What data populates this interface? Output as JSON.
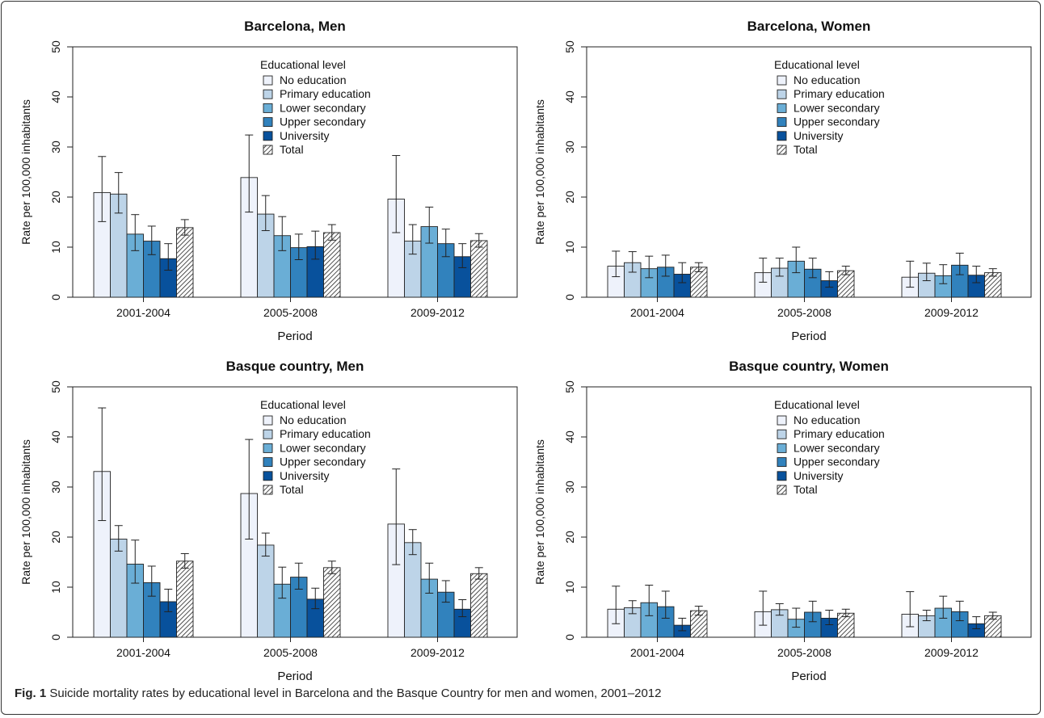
{
  "figure": {
    "caption_label": "Fig. 1",
    "caption_text": "Suicide mortality rates by educational level in Barcelona and the Basque Country for men and women, 2001–2012"
  },
  "colors": {
    "No education": "#eef2fb",
    "Primary education": "#bdd4e8",
    "Lower secondary": "#6aaed6",
    "Upper secondary": "#3182bd",
    "University": "#08519c",
    "Total": "hatched"
  },
  "chart_data": [
    {
      "type": "bar",
      "title": "Barcelona,  Men",
      "xlabel": "Period",
      "ylabel": "Rate per 100,000 inhabitants",
      "ylim": [
        0,
        50
      ],
      "yticks": [
        0,
        10,
        20,
        30,
        40,
        50
      ],
      "categories": [
        "2001-2004",
        "2005-2008",
        "2009-2012"
      ],
      "legend_title": "Educational level",
      "legend_position": "top-center",
      "series": [
        {
          "name": "No education",
          "values": [
            20.9,
            23.9,
            19.6
          ],
          "ci_low": [
            15.1,
            17.0,
            12.9
          ],
          "ci_high": [
            28.1,
            32.4,
            28.3
          ]
        },
        {
          "name": "Primary education",
          "values": [
            20.6,
            16.6,
            11.2
          ],
          "ci_low": [
            16.8,
            13.3,
            8.6
          ],
          "ci_high": [
            24.9,
            20.3,
            14.5
          ]
        },
        {
          "name": "Lower secondary",
          "values": [
            12.6,
            12.3,
            14.1
          ],
          "ci_low": [
            9.3,
            9.3,
            10.8
          ],
          "ci_high": [
            16.5,
            16.1,
            18.0
          ]
        },
        {
          "name": "Upper secondary",
          "values": [
            11.2,
            9.9,
            10.7
          ],
          "ci_low": [
            8.5,
            7.5,
            8.1
          ],
          "ci_high": [
            14.2,
            12.6,
            13.6
          ]
        },
        {
          "name": "University",
          "values": [
            7.7,
            10.1,
            8.1
          ],
          "ci_low": [
            5.4,
            7.6,
            5.9
          ],
          "ci_high": [
            10.7,
            13.2,
            10.7
          ]
        },
        {
          "name": "Total",
          "values": [
            13.9,
            12.9,
            11.3
          ],
          "ci_low": [
            12.4,
            11.4,
            10.0
          ],
          "ci_high": [
            15.5,
            14.5,
            12.7
          ]
        }
      ]
    },
    {
      "type": "bar",
      "title": "Barcelona,  Women",
      "xlabel": "Period",
      "ylabel": "Rate per 100,000 inhabitants",
      "ylim": [
        0,
        50
      ],
      "yticks": [
        0,
        10,
        20,
        30,
        40,
        50
      ],
      "categories": [
        "2001-2004",
        "2005-2008",
        "2009-2012"
      ],
      "legend_title": "Educational level",
      "legend_position": "top-center",
      "series": [
        {
          "name": "No education",
          "values": [
            6.2,
            4.9,
            4.0
          ],
          "ci_low": [
            4.1,
            3.0,
            2.0
          ],
          "ci_high": [
            9.2,
            7.8,
            7.2
          ]
        },
        {
          "name": "Primary education",
          "values": [
            6.9,
            5.8,
            4.8
          ],
          "ci_low": [
            5.0,
            4.2,
            3.3
          ],
          "ci_high": [
            9.1,
            7.8,
            6.8
          ]
        },
        {
          "name": "Lower secondary",
          "values": [
            5.7,
            7.2,
            4.3
          ],
          "ci_low": [
            3.9,
            4.9,
            2.7
          ],
          "ci_high": [
            8.2,
            10.0,
            6.5
          ]
        },
        {
          "name": "Upper secondary",
          "values": [
            6.0,
            5.6,
            6.4
          ],
          "ci_low": [
            4.2,
            3.9,
            4.5
          ],
          "ci_high": [
            8.4,
            7.8,
            8.8
          ]
        },
        {
          "name": "University",
          "values": [
            4.6,
            3.3,
            4.4
          ],
          "ci_low": [
            2.9,
            2.0,
            2.9
          ],
          "ci_high": [
            6.9,
            5.1,
            6.2
          ]
        },
        {
          "name": "Total",
          "values": [
            6.0,
            5.3,
            4.9
          ],
          "ci_low": [
            5.1,
            4.5,
            4.2
          ],
          "ci_high": [
            6.9,
            6.2,
            5.7
          ]
        }
      ]
    },
    {
      "type": "bar",
      "title": "Basque country,  Men",
      "xlabel": "Period",
      "ylabel": "Rate per 100,000 inhabitants",
      "ylim": [
        0,
        50
      ],
      "yticks": [
        0,
        10,
        20,
        30,
        40,
        50
      ],
      "categories": [
        "2001-2004",
        "2005-2008",
        "2009-2012"
      ],
      "legend_title": "Educational level",
      "legend_position": "top-center",
      "series": [
        {
          "name": "No education",
          "values": [
            33.1,
            28.7,
            22.6
          ],
          "ci_low": [
            23.3,
            19.6,
            14.5
          ],
          "ci_high": [
            45.8,
            39.5,
            33.6
          ]
        },
        {
          "name": "Primary education",
          "values": [
            19.6,
            18.4,
            18.9
          ],
          "ci_low": [
            17.2,
            16.2,
            16.5
          ],
          "ci_high": [
            22.3,
            20.8,
            21.5
          ]
        },
        {
          "name": "Lower secondary",
          "values": [
            14.6,
            10.6,
            11.6
          ],
          "ci_low": [
            10.8,
            7.8,
            8.8
          ],
          "ci_high": [
            19.4,
            14.0,
            14.8
          ]
        },
        {
          "name": "Upper secondary",
          "values": [
            10.9,
            12.0,
            9.0
          ],
          "ci_low": [
            8.2,
            9.6,
            7.0
          ],
          "ci_high": [
            14.2,
            14.8,
            11.3
          ]
        },
        {
          "name": "University",
          "values": [
            7.1,
            7.6,
            5.6
          ],
          "ci_low": [
            5.1,
            5.7,
            4.1
          ],
          "ci_high": [
            9.6,
            9.8,
            7.5
          ]
        },
        {
          "name": "Total",
          "values": [
            15.2,
            13.9,
            12.7
          ],
          "ci_low": [
            13.8,
            12.7,
            11.6
          ],
          "ci_high": [
            16.7,
            15.2,
            13.9
          ]
        }
      ]
    },
    {
      "type": "bar",
      "title": "Basque country,  Women",
      "xlabel": "Period",
      "ylabel": "Rate per 100,000 inhabitants",
      "ylim": [
        0,
        50
      ],
      "yticks": [
        0,
        10,
        20,
        30,
        40,
        50
      ],
      "categories": [
        "2001-2004",
        "2005-2008",
        "2009-2012"
      ],
      "legend_title": "Educational level",
      "legend_position": "top-center",
      "series": [
        {
          "name": "No education",
          "values": [
            5.6,
            5.1,
            4.6
          ],
          "ci_low": [
            2.7,
            2.4,
            2.1
          ],
          "ci_high": [
            10.2,
            9.2,
            9.1
          ]
        },
        {
          "name": "Primary education",
          "values": [
            5.9,
            5.5,
            4.3
          ],
          "ci_low": [
            4.7,
            4.4,
            3.3
          ],
          "ci_high": [
            7.3,
            6.7,
            5.4
          ]
        },
        {
          "name": "Lower secondary",
          "values": [
            6.9,
            3.6,
            5.8
          ],
          "ci_low": [
            4.3,
            2.0,
            3.8
          ],
          "ci_high": [
            10.4,
            5.8,
            8.2
          ]
        },
        {
          "name": "Upper secondary",
          "values": [
            6.1,
            5.0,
            5.1
          ],
          "ci_low": [
            3.8,
            3.1,
            3.3
          ],
          "ci_high": [
            9.2,
            7.2,
            7.2
          ]
        },
        {
          "name": "University",
          "values": [
            2.4,
            3.8,
            2.7
          ],
          "ci_low": [
            1.3,
            2.5,
            1.7
          ],
          "ci_high": [
            3.8,
            5.4,
            4.1
          ]
        },
        {
          "name": "Total",
          "values": [
            5.3,
            4.8,
            4.3
          ],
          "ci_low": [
            4.4,
            4.1,
            3.6
          ],
          "ci_high": [
            6.2,
            5.6,
            5.0
          ]
        }
      ]
    }
  ]
}
